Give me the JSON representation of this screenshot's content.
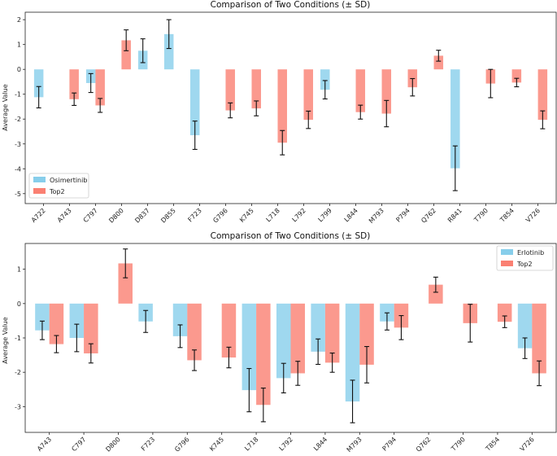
{
  "chart_data": [
    {
      "type": "bar",
      "title": "Comparison of Two Conditions (± SD)",
      "ylabel": "Average Value",
      "xlabel": "",
      "ylim": [
        -5.4,
        2.3
      ],
      "yticks": [
        -5,
        -4,
        -3,
        -2,
        -1,
        0,
        1,
        2
      ],
      "legend_position": "bottom-left",
      "categories": [
        "A722",
        "A743",
        "C797",
        "D800",
        "D837",
        "D855",
        "F723",
        "G796",
        "K745",
        "L718",
        "L792",
        "L799",
        "L844",
        "M793",
        "P794",
        "Q762",
        "R841",
        "T790",
        "T854",
        "V726"
      ],
      "series": [
        {
          "name": "Osimertinib",
          "color": "#87ceeb",
          "values": [
            -1.12,
            null,
            -0.55,
            null,
            0.75,
            1.42,
            -2.65,
            null,
            null,
            null,
            null,
            -0.82,
            null,
            null,
            null,
            null,
            -3.98,
            null,
            null,
            null
          ],
          "errors": [
            0.43,
            null,
            0.38,
            null,
            0.48,
            0.58,
            0.57,
            null,
            null,
            null,
            null,
            0.37,
            null,
            null,
            null,
            null,
            0.9,
            null,
            null,
            null
          ]
        },
        {
          "name": "Top2",
          "color": "#fa8072",
          "values": [
            null,
            -1.2,
            -1.45,
            1.17,
            null,
            null,
            null,
            -1.65,
            -1.57,
            -2.95,
            -2.03,
            null,
            -1.72,
            -1.78,
            -0.72,
            0.55,
            null,
            -0.57,
            -0.53,
            -2.03
          ],
          "errors": [
            null,
            0.25,
            0.28,
            0.42,
            null,
            null,
            null,
            0.3,
            0.3,
            0.49,
            0.35,
            null,
            0.28,
            0.53,
            0.35,
            0.22,
            null,
            0.57,
            0.17,
            0.36
          ]
        }
      ]
    },
    {
      "type": "bar",
      "title": "Comparison of Two Conditions (± SD)",
      "ylabel": "Average Value",
      "xlabel": "",
      "ylim": [
        -3.75,
        1.75
      ],
      "yticks": [
        -3,
        -2,
        -1,
        0,
        1
      ],
      "legend_position": "top-right",
      "categories": [
        "A743",
        "C797",
        "D800",
        "F723",
        "G796",
        "K745",
        "L718",
        "L792",
        "L844",
        "M793",
        "P794",
        "Q762",
        "T790",
        "T854",
        "V726"
      ],
      "series": [
        {
          "name": "Erlotinib",
          "color": "#87ceeb",
          "values": [
            -0.78,
            -1.0,
            null,
            -0.52,
            -0.95,
            null,
            -2.52,
            -2.17,
            -1.4,
            -2.85,
            -0.52,
            null,
            null,
            null,
            -1.3
          ],
          "errors": [
            0.27,
            0.4,
            null,
            0.32,
            0.33,
            null,
            0.63,
            0.43,
            0.37,
            0.62,
            0.25,
            null,
            null,
            null,
            0.3
          ]
        },
        {
          "name": "Top2",
          "color": "#fa8072",
          "values": [
            -1.18,
            -1.45,
            1.17,
            null,
            -1.65,
            -1.57,
            -2.95,
            -2.03,
            -1.72,
            -1.78,
            -0.7,
            0.55,
            -0.57,
            -0.53,
            -2.03
          ],
          "errors": [
            0.25,
            0.28,
            0.42,
            null,
            0.3,
            0.3,
            0.49,
            0.35,
            0.28,
            0.53,
            0.35,
            0.22,
            0.55,
            0.17,
            0.36
          ]
        }
      ]
    }
  ]
}
